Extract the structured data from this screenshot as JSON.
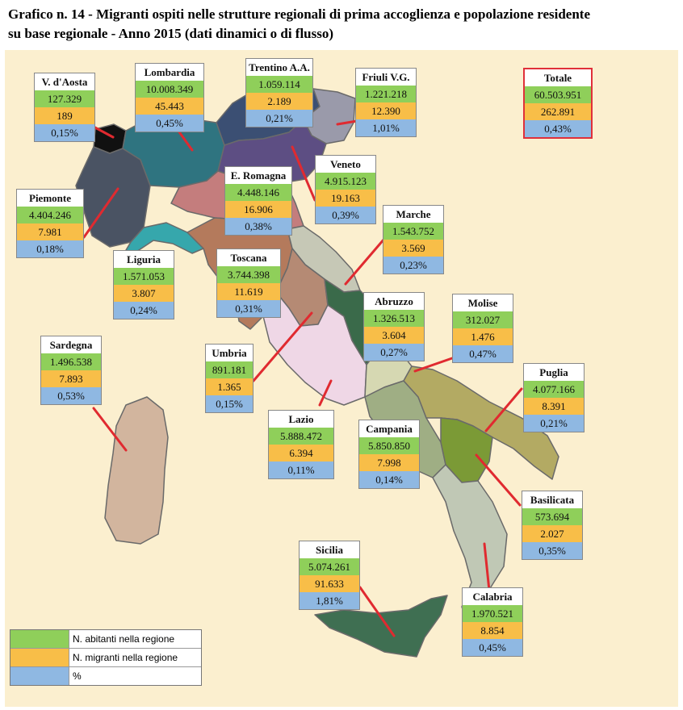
{
  "title": "Grafico n. 14 - Migranti ospiti nelle strutture regionali di prima accoglienza e popolazione residente",
  "title_line2": "su base regionale - Anno 2015 (dati dinamici o di flusso)",
  "colors": {
    "population": "#8fcf5a",
    "migrants": "#f8be48",
    "percent": "#8fb8e2",
    "connector": "#e02a30",
    "background": "#fbefcf"
  },
  "regions": {
    "valle_daosta": {
      "name": "V. d'Aosta",
      "population": "127.329",
      "migrants": "189",
      "percent": "0,15%"
    },
    "lombardia": {
      "name": "Lombardia",
      "population": "10.008.349",
      "migrants": "45.443",
      "percent": "0,45%"
    },
    "trentino": {
      "name": "Trentino A.A.",
      "population": "1.059.114",
      "migrants": "2.189",
      "percent": "0,21%"
    },
    "friuli": {
      "name": "Friuli V.G.",
      "population": "1.221.218",
      "migrants": "12.390",
      "percent": "1,01%"
    },
    "piemonte": {
      "name": "Piemonte",
      "population": "4.404.246",
      "migrants": "7.981",
      "percent": "0,18%"
    },
    "emilia": {
      "name": "E. Romagna",
      "population": "4.448.146",
      "migrants": "16.906",
      "percent": "0,38%"
    },
    "veneto": {
      "name": "Veneto",
      "population": "4.915.123",
      "migrants": "19.163",
      "percent": "0,39%"
    },
    "liguria": {
      "name": "Liguria",
      "population": "1.571.053",
      "migrants": "3.807",
      "percent": "0,24%"
    },
    "toscana": {
      "name": "Toscana",
      "population": "3.744.398",
      "migrants": "11.619",
      "percent": "0,31%"
    },
    "marche": {
      "name": "Marche",
      "population": "1.543.752",
      "migrants": "3.569",
      "percent": "0,23%"
    },
    "sardegna": {
      "name": "Sardegna",
      "population": "1.496.538",
      "migrants": "7.893",
      "percent": "0,53%"
    },
    "abruzzo": {
      "name": "Abruzzo",
      "population": "1.326.513",
      "migrants": "3.604",
      "percent": "0,27%"
    },
    "molise": {
      "name": "Molise",
      "population": "312.027",
      "migrants": "1.476",
      "percent": "0,47%"
    },
    "umbria": {
      "name": "Umbria",
      "population": "891.181",
      "migrants": "1.365",
      "percent": "0,15%"
    },
    "puglia": {
      "name": "Puglia",
      "population": "4.077.166",
      "migrants": "8.391",
      "percent": "0,21%"
    },
    "lazio": {
      "name": "Lazio",
      "population": "5.888.472",
      "migrants": "6.394",
      "percent": "0,11%"
    },
    "campania": {
      "name": "Campania",
      "population": "5.850.850",
      "migrants": "7.998",
      "percent": "0,14%"
    },
    "basilicata": {
      "name": "Basilicata",
      "population": "573.694",
      "migrants": "2.027",
      "percent": "0,35%"
    },
    "sicilia": {
      "name": "Sicilia",
      "population": "5.074.261",
      "migrants": "91.633",
      "percent": "1,81%"
    },
    "calabria": {
      "name": "Calabria",
      "population": "1.970.521",
      "migrants": "8.854",
      "percent": "0,45%"
    }
  },
  "total": {
    "name": "Totale",
    "population": "60.503.951",
    "migrants": "262.891",
    "percent": "0,43%"
  },
  "legend": {
    "population": "N. abitanti nella regione",
    "migrants": "N. migranti nella regione",
    "percent": "%"
  }
}
